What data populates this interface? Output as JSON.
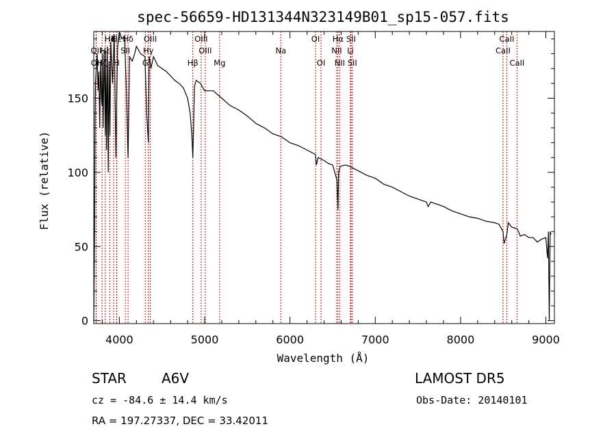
{
  "chart_data": {
    "type": "line",
    "title": "spec-56659-HD131344N323149B01_sp15-057.fits",
    "xlabel": "Wavelength (Å)",
    "ylabel": "Flux (relative)",
    "xlim": [
      3700,
      9100
    ],
    "ylim": [
      -2,
      195
    ],
    "xticks": [
      4000,
      5000,
      6000,
      7000,
      8000,
      9000
    ],
    "yticks": [
      0,
      50,
      100,
      150
    ],
    "line_color": "#000000",
    "marker_color": "#cc0000",
    "series": [
      {
        "x": [
          3700,
          3705,
          3710,
          3715,
          3720,
          3730,
          3740,
          3750,
          3760,
          3770,
          3780,
          3790,
          3797,
          3800,
          3810,
          3820,
          3830,
          3835,
          3840,
          3850,
          3860,
          3870,
          3880,
          3889,
          3900,
          3920,
          3940,
          3960,
          3970,
          3980,
          4000,
          4030,
          4060,
          4080,
          4102,
          4120,
          4150,
          4180,
          4200,
          4250,
          4300,
          4320,
          4340,
          4350,
          4360,
          4370,
          4400,
          4450,
          4500,
          4550,
          4600,
          4650,
          4700,
          4750,
          4800,
          4830,
          4850,
          4861,
          4870,
          4880,
          4900,
          4950,
          5000,
          5100,
          5200,
          5300,
          5400,
          5500,
          5600,
          5700,
          5800,
          5900,
          6000,
          6100,
          6200,
          6300,
          6310,
          6330,
          6400,
          6450,
          6500,
          6550,
          6563,
          6570,
          6590,
          6650,
          6700,
          6800,
          6900,
          7000,
          7100,
          7200,
          7300,
          7400,
          7500,
          7600,
          7620,
          7650,
          7700,
          7800,
          7900,
          8000,
          8100,
          8200,
          8300,
          8400,
          8450,
          8498,
          8510,
          8542,
          8560,
          8600,
          8662,
          8680,
          8700,
          8750,
          8800,
          8850,
          8900,
          8950,
          9000,
          9020,
          9030,
          9040,
          9050,
          9060
        ],
        "values": [
          0,
          30,
          65,
          140,
          160,
          170,
          180,
          155,
          168,
          130,
          175,
          150,
          145,
          180,
          130,
          182,
          150,
          125,
          182,
          115,
          185,
          100,
          175,
          125,
          188,
          160,
          193,
          110,
          155,
          185,
          195,
          190,
          192,
          160,
          110,
          178,
          175,
          180,
          185,
          180,
          178,
          140,
          120,
          178,
          175,
          170,
          178,
          172,
          170,
          168,
          165,
          162,
          160,
          157,
          150,
          140,
          125,
          110,
          130,
          158,
          162,
          160,
          155,
          155,
          150,
          145,
          142,
          138,
          133,
          130,
          126,
          124,
          120,
          118,
          115,
          112,
          105,
          110,
          108,
          106,
          105,
          95,
          75,
          100,
          104,
          105,
          104,
          101,
          98,
          96,
          92,
          90,
          87,
          84,
          82,
          80,
          77,
          80,
          79,
          77,
          74,
          72,
          70,
          69,
          67,
          66,
          65,
          60,
          52,
          58,
          66,
          63,
          62,
          60,
          57,
          58,
          56,
          56,
          53,
          55,
          56,
          42,
          60,
          0,
          60,
          58
        ]
      }
    ],
    "lines": [
      {
        "label": "Hδ",
        "wl": 3889,
        "row": 1
      },
      {
        "label": "OII",
        "wl": 3727,
        "row": 2
      },
      {
        "label": "OII",
        "wl": 3729,
        "row": 3
      },
      {
        "label": "Hζ",
        "wl": 3797,
        "row": 3
      },
      {
        "label": "Hε",
        "wl": 3970,
        "row": 1
      },
      {
        "label": "Hε",
        "wl": 3835,
        "row": 2
      },
      {
        "label": "K",
        "wl": 3933,
        "row": 1
      },
      {
        "label": "H",
        "wl": 3968,
        "row": 3
      },
      {
        "label": "Hδ",
        "wl": 4102,
        "row": 1
      },
      {
        "label": "SII",
        "wl": 4070,
        "row": 2
      },
      {
        "label": "OIII",
        "wl": 4363,
        "row": 1
      },
      {
        "label": "Hγ",
        "wl": 4340,
        "row": 2
      },
      {
        "label": "G",
        "wl": 4304,
        "row": 3
      },
      {
        "label": "OIII",
        "wl": 4959,
        "row": 1
      },
      {
        "label": "OIII",
        "wl": 5007,
        "row": 2
      },
      {
        "label": "Hβ",
        "wl": 4861,
        "row": 3
      },
      {
        "label": "Mg",
        "wl": 5175,
        "row": 3
      },
      {
        "label": "Na",
        "wl": 5893,
        "row": 2
      },
      {
        "label": "OI",
        "wl": 6300,
        "row": 1
      },
      {
        "label": "OI",
        "wl": 6364,
        "row": 3
      },
      {
        "label": "Hα",
        "wl": 6563,
        "row": 1
      },
      {
        "label": "NII",
        "wl": 6548,
        "row": 2
      },
      {
        "label": "NII",
        "wl": 6583,
        "row": 3
      },
      {
        "label": "SII",
        "wl": 6716,
        "row": 1
      },
      {
        "label": "Li",
        "wl": 6708,
        "row": 2
      },
      {
        "label": "SII",
        "wl": 6731,
        "row": 3
      },
      {
        "label": "CaII",
        "wl": 8542,
        "row": 1
      },
      {
        "label": "CaII",
        "wl": 8498,
        "row": 2
      },
      {
        "label": "CaII",
        "wl": 8662,
        "row": 3
      }
    ]
  },
  "info": {
    "class": "STAR",
    "subclass": "A6V",
    "survey": "LAMOST DR5",
    "cz": "cz = -84.6 ± 14.4 km/s",
    "obsdate": "Obs-Date: 20140101",
    "radec": "RA = 197.27337, DEC =  33.42011"
  }
}
